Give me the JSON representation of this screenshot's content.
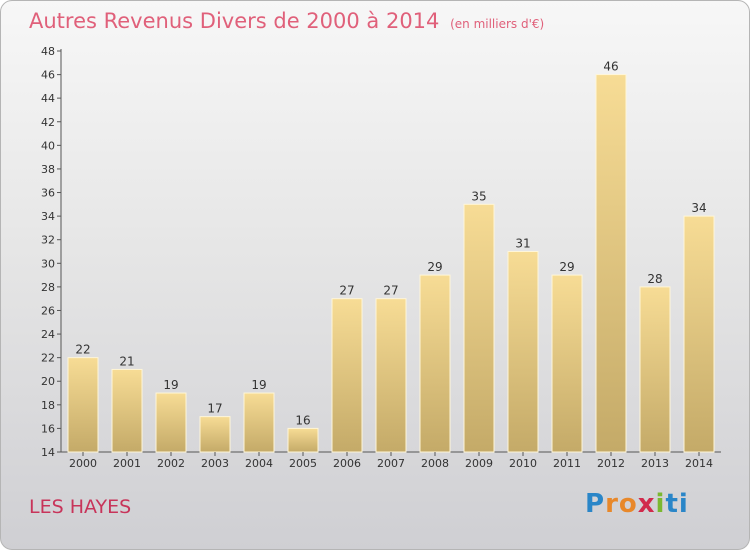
{
  "title": "Autres Revenus Divers de 2000 à 2014",
  "subtitle": "(en milliers d'€)",
  "commune": "LES HAYES",
  "logo": {
    "text": "Proxiti",
    "letters": [
      "P",
      "r",
      "o",
      "x",
      "i",
      "ti"
    ]
  },
  "colors": {
    "title": "#e0607a",
    "commune": "#c8345a",
    "bar_light": "#f7dc95",
    "bar_dark": "#c4aa68"
  },
  "chart_data": {
    "type": "bar",
    "categories": [
      "2000",
      "2001",
      "2002",
      "2003",
      "2004",
      "2005",
      "2006",
      "2007",
      "2008",
      "2009",
      "2010",
      "2011",
      "2012",
      "2013",
      "2014"
    ],
    "values": [
      22,
      21,
      19,
      17,
      19,
      16,
      27,
      27,
      29,
      35,
      31,
      29,
      46,
      28,
      34
    ],
    "ylim": [
      14,
      48
    ],
    "yticks": [
      14,
      16,
      18,
      20,
      22,
      24,
      26,
      28,
      30,
      32,
      34,
      36,
      38,
      40,
      42,
      44,
      46,
      48
    ],
    "grid": false,
    "data_labels": true
  }
}
